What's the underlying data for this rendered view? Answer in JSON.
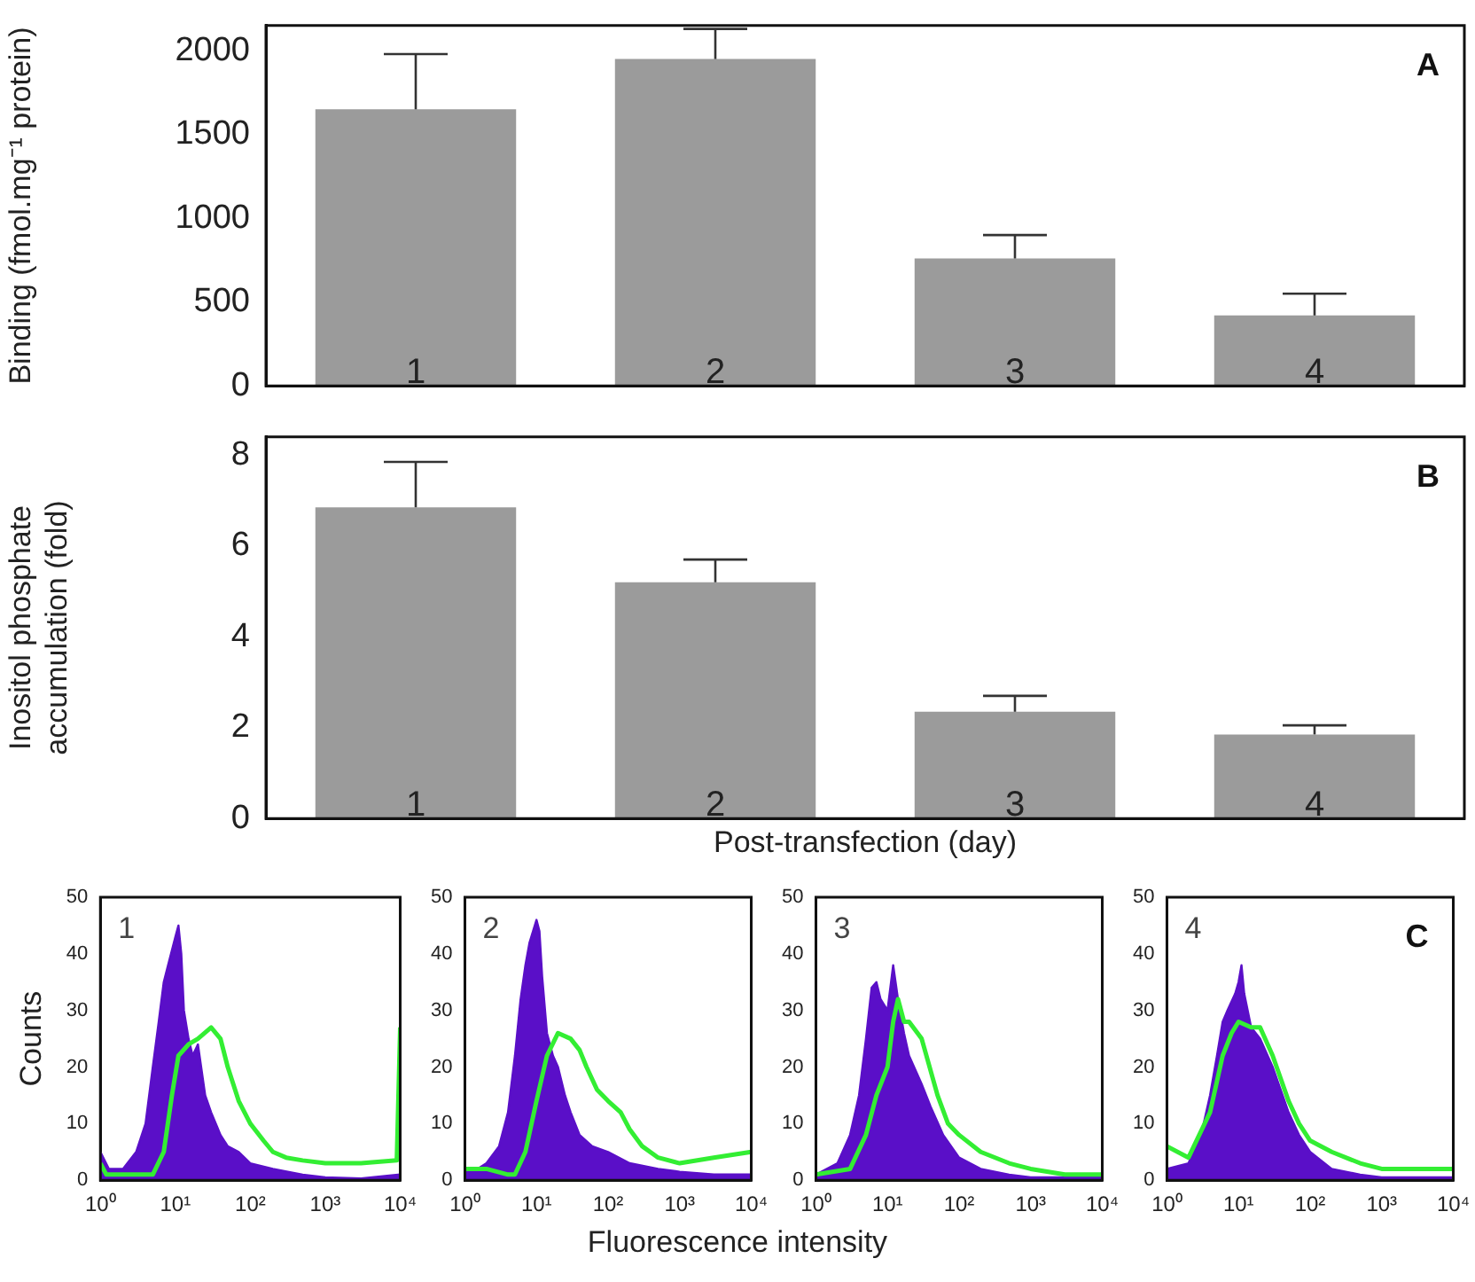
{
  "chart_data": [
    {
      "type": "bar",
      "ylabel": "Binding (fmol.mg⁻¹ protein)",
      "categories": [
        "1",
        "2",
        "3",
        "4"
      ],
      "values": [
        1650,
        1950,
        760,
        420
      ],
      "color": "#9b9b9b",
      "errors": [
        [
          1650,
          1980
        ],
        [
          1950,
          2130
        ],
        [
          760,
          900
        ],
        [
          420,
          550
        ]
      ],
      "ylim": [
        0,
        2150
      ],
      "yticks": [
        0,
        500,
        1000,
        1500,
        2000
      ],
      "grid": false,
      "legend": false,
      "annotations": [
        "A"
      ]
    },
    {
      "type": "bar",
      "ylabel": "Inositol phosphate accumulation (fold)",
      "xlabel": "Post-transfection (day)",
      "categories": [
        "1",
        "2",
        "3",
        "4"
      ],
      "values": [
        6.85,
        5.2,
        2.35,
        1.85
      ],
      "color": "#9b9b9b",
      "errors": [
        [
          6.85,
          7.85
        ],
        [
          5.2,
          5.7
        ],
        [
          2.35,
          2.7
        ],
        [
          1.85,
          2.05
        ]
      ],
      "ylim": [
        0,
        8.4
      ],
      "yticks": [
        0,
        2,
        4,
        6,
        8
      ],
      "grid": false,
      "legend": false,
      "annotations": [
        "B"
      ]
    },
    {
      "type": "area",
      "ylabel": "Counts",
      "log": "x",
      "xlim": [
        1,
        10000
      ],
      "ylim": [
        0,
        50
      ],
      "xticks": [
        {
          "value": 1,
          "label": "10⁰"
        },
        {
          "value": 10,
          "label": "10¹"
        },
        {
          "value": 100,
          "label": "10²"
        },
        {
          "value": 1000,
          "label": "10³"
        },
        {
          "value": 10000,
          "label": "10⁴"
        }
      ],
      "yticks": [
        0,
        10,
        20,
        30,
        40,
        50
      ],
      "grid": false,
      "legend": false,
      "annotations": [
        "1"
      ],
      "series": [
        {
          "type": "area",
          "color": "#5a0fc8",
          "x": [
            1,
            1.3,
            2,
            3,
            4,
            5,
            6,
            7,
            8,
            10,
            11,
            12,
            13,
            15,
            17,
            20,
            25,
            30,
            40,
            50,
            70,
            100,
            200,
            500,
            1000,
            3000,
            10000
          ],
          "values": [
            5,
            2,
            2,
            5,
            10,
            20,
            28,
            35,
            38,
            43,
            45,
            40,
            30,
            25,
            22,
            24,
            15,
            12,
            8,
            6,
            5,
            3,
            2,
            1,
            0.5,
            0.3,
            1
          ]
        },
        {
          "type": "line",
          "color": "#33ee33",
          "x": [
            1,
            1.2,
            3,
            5,
            7,
            9,
            11,
            15,
            20,
            30,
            40,
            50,
            70,
            100,
            150,
            200,
            300,
            500,
            1000,
            3000,
            9000,
            10000
          ],
          "values": [
            3,
            1,
            1,
            1,
            5,
            15,
            22,
            24,
            25,
            27,
            25,
            20,
            14,
            10,
            7,
            5,
            4,
            3.5,
            3,
            3,
            3.5,
            27
          ]
        }
      ]
    },
    {
      "type": "area",
      "xlabel": "Fluorescence intensity",
      "log": "x",
      "xlim": [
        1,
        10000
      ],
      "ylim": [
        0,
        50
      ],
      "xticks": [
        {
          "value": 1,
          "label": "10⁰"
        },
        {
          "value": 10,
          "label": "10¹"
        },
        {
          "value": 100,
          "label": "10²"
        },
        {
          "value": 1000,
          "label": "10³"
        },
        {
          "value": 10000,
          "label": "10⁴"
        }
      ],
      "yticks": [
        0,
        10,
        20,
        30,
        40,
        50
      ],
      "grid": false,
      "legend": false,
      "annotations": [
        "2"
      ],
      "series": [
        {
          "type": "area",
          "color": "#5a0fc8",
          "x": [
            1,
            1.5,
            2,
            3,
            4,
            5,
            6,
            7,
            8,
            10,
            11,
            12,
            14,
            17,
            20,
            25,
            30,
            40,
            60,
            100,
            200,
            500,
            1000,
            3000,
            10000
          ],
          "values": [
            2,
            2,
            3,
            6,
            12,
            22,
            32,
            38,
            42,
            46,
            44,
            36,
            26,
            22,
            20,
            15,
            12,
            8,
            6,
            5,
            3,
            2,
            1.5,
            1,
            1
          ]
        },
        {
          "type": "line",
          "color": "#33ee33",
          "x": [
            1,
            2,
            4,
            5,
            7,
            10,
            14,
            20,
            30,
            40,
            50,
            70,
            100,
            150,
            200,
            300,
            500,
            1000,
            3000,
            10000
          ],
          "values": [
            2,
            2,
            1,
            1,
            5,
            14,
            22,
            26,
            25,
            23,
            20,
            16,
            14,
            12,
            9,
            6,
            4,
            3,
            4,
            5
          ]
        }
      ]
    },
    {
      "type": "area",
      "log": "x",
      "xlim": [
        1,
        10000
      ],
      "ylim": [
        0,
        50
      ],
      "xticks": [
        {
          "value": 1,
          "label": "10⁰"
        },
        {
          "value": 10,
          "label": "10¹"
        },
        {
          "value": 100,
          "label": "10²"
        },
        {
          "value": 1000,
          "label": "10³"
        },
        {
          "value": 10000,
          "label": "10⁴"
        }
      ],
      "yticks": [
        0,
        10,
        20,
        30,
        40,
        50
      ],
      "grid": false,
      "legend": false,
      "annotations": [
        "3"
      ],
      "series": [
        {
          "type": "area",
          "color": "#5a0fc8",
          "x": [
            1,
            2,
            3,
            4,
            5,
            6,
            7,
            8,
            10,
            12,
            14,
            17,
            20,
            30,
            40,
            60,
            100,
            200,
            500,
            1000,
            10000
          ],
          "values": [
            1,
            3,
            8,
            15,
            25,
            34,
            35,
            32,
            30,
            38,
            32,
            26,
            22,
            17,
            13,
            8,
            4,
            2,
            1,
            0.5,
            0.5
          ]
        },
        {
          "type": "line",
          "color": "#33ee33",
          "x": [
            1,
            3,
            5,
            7,
            10,
            12,
            14,
            17,
            20,
            30,
            50,
            70,
            100,
            200,
            500,
            1000,
            3000,
            10000
          ],
          "values": [
            1,
            2,
            8,
            15,
            20,
            28,
            32,
            28,
            28,
            25,
            15,
            10,
            8,
            5,
            3,
            2,
            1,
            1
          ]
        }
      ]
    },
    {
      "type": "area",
      "log": "x",
      "xlim": [
        1,
        10000
      ],
      "ylim": [
        0,
        50
      ],
      "xticks": [
        {
          "value": 1,
          "label": "10⁰"
        },
        {
          "value": 10,
          "label": "10¹"
        },
        {
          "value": 100,
          "label": "10²"
        },
        {
          "value": 1000,
          "label": "10³"
        },
        {
          "value": 10000,
          "label": "10⁴"
        }
      ],
      "yticks": [
        0,
        10,
        20,
        30,
        40,
        50
      ],
      "grid": false,
      "legend": false,
      "annotations": [
        "4",
        "C"
      ],
      "series": [
        {
          "type": "area",
          "color": "#5a0fc8",
          "x": [
            1,
            2,
            3,
            4,
            5,
            6,
            7,
            9,
            10,
            11,
            12,
            15,
            20,
            30,
            50,
            70,
            100,
            200,
            500,
            1000,
            10000
          ],
          "values": [
            2,
            3,
            8,
            15,
            22,
            28,
            30,
            33,
            35,
            38,
            33,
            27,
            25,
            20,
            12,
            8,
            5,
            2,
            1,
            0.5,
            0.5
          ]
        },
        {
          "type": "line",
          "color": "#33ee33",
          "x": [
            1,
            2,
            4,
            6,
            8,
            10,
            15,
            20,
            30,
            50,
            70,
            100,
            200,
            500,
            1000,
            10000
          ],
          "values": [
            6,
            4,
            12,
            22,
            26,
            28,
            27,
            27,
            22,
            14,
            10,
            7,
            5,
            3,
            2,
            2
          ]
        }
      ]
    }
  ]
}
